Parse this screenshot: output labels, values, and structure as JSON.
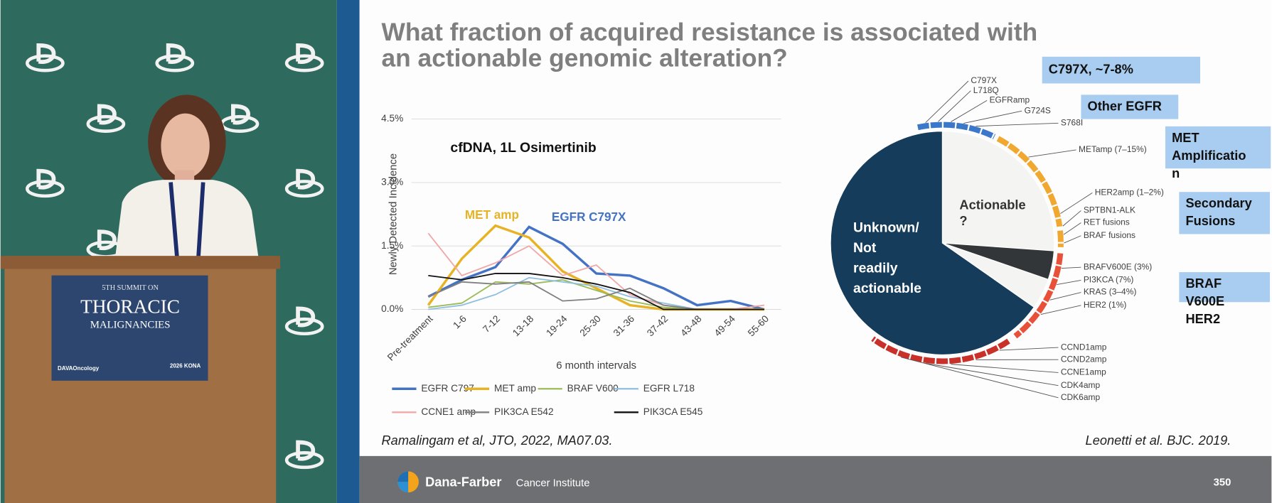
{
  "podium": {
    "line1": "5TH SUMMIT ON",
    "line2": "THORACIC",
    "line3": "MALIGNANCIES",
    "logo": "DAVAOncology",
    "event": "2026 KONA"
  },
  "slide": {
    "title": [
      "What fraction of acquired resistance is associated with",
      "an actionable genomic alteration?"
    ],
    "left_citation": "Ramalingam et al, JTO, 2022, MA07.03.",
    "right_citation": "Leonetti et al. BJC. 2019.",
    "footer": {
      "brand": "Dana-Farber",
      "sub": "Cancer Institute",
      "page": "350"
    }
  },
  "chart_data": {
    "type": "line",
    "annotations": [
      "cfDNA, 1L Osimertinib",
      "MET amp",
      "EGFR C797X"
    ],
    "x_label": "6 month intervals",
    "y_label": "Newly Detected Incidence",
    "categories": [
      "Pre-treatment",
      "1-6",
      "7-12",
      "13-18",
      "19-24",
      "25-30",
      "31-36",
      "37-42",
      "43-48",
      "49-54",
      "55-60"
    ],
    "ylim": [
      0,
      4.5
    ],
    "yticks": [
      {
        "value": 0,
        "label": "0.0%"
      },
      {
        "value": 1.5,
        "label": "1.5%"
      },
      {
        "value": 3,
        "label": "3.0%"
      },
      {
        "value": 4.5,
        "label": "4.5%"
      }
    ],
    "grid": true,
    "legend": "bottom",
    "series": [
      {
        "name": "EGFR C797",
        "color": "#4472c4",
        "values": [
          0.3,
          0.7,
          1.0,
          1.95,
          1.55,
          0.85,
          0.8,
          0.5,
          0.1,
          0.2,
          0.0
        ]
      },
      {
        "name": "MET amp",
        "color": "#e7b324",
        "values": [
          0.1,
          1.2,
          1.98,
          1.7,
          0.9,
          0.5,
          0.1,
          0.0,
          0.0,
          0.0,
          0.0
        ]
      },
      {
        "name": "BRAF V600",
        "color": "#9bbb59",
        "values": [
          0.05,
          0.15,
          0.65,
          0.6,
          0.7,
          0.45,
          0.2,
          0.05,
          0.0,
          0.0,
          0.0
        ]
      },
      {
        "name": "EGFR L718",
        "color": "#8fbfe0",
        "values": [
          0.0,
          0.1,
          0.35,
          0.75,
          0.65,
          0.55,
          0.3,
          0.15,
          0.0,
          0.0,
          0.0
        ]
      },
      {
        "name": "CCNE1 amp",
        "color": "#f0a8a8",
        "values": [
          1.8,
          0.8,
          1.1,
          1.5,
          0.8,
          1.05,
          0.35,
          0.1,
          0.0,
          0.0,
          0.1
        ]
      },
      {
        "name": "PIK3CA E542",
        "color": "#808080",
        "values": [
          0.3,
          0.65,
          0.6,
          0.65,
          0.2,
          0.25,
          0.5,
          0.1,
          0.0,
          0.0,
          0.0
        ]
      },
      {
        "name": "PIK3CA E545",
        "color": "#111111",
        "values": [
          0.8,
          0.7,
          0.85,
          0.85,
          0.75,
          0.6,
          0.4,
          0.0,
          0.0,
          0.0,
          0.0
        ]
      }
    ]
  },
  "pie_diagram": {
    "actionable": [
      "Actionable",
      "?"
    ],
    "unknown": [
      "Unknown/",
      "Not",
      "readily",
      "actionable"
    ],
    "segment_labels": [
      "C797X",
      "L718Q",
      "EGFRamp",
      "G724S",
      "S768I",
      "METamp (7–15%)",
      "HER2amp (1–2%)",
      "SPTBN1-ALK",
      "RET fusions",
      "BRAF fusions",
      "BRAFV600E (3%)",
      "PI3KCA (7%)",
      "KRAS (3–4%)",
      "HER2 (1%)",
      "CCND1amp",
      "CCND2amp",
      "CCNE1amp",
      "CDK4amp",
      "CDK6amp"
    ],
    "boxes": [
      [
        "C797X, ~7-8%"
      ],
      [
        "Other EGFR"
      ],
      [
        "MET",
        "Amplificatio",
        "n"
      ],
      [
        "Secondary",
        "Fusions"
      ],
      [
        "BRAF",
        "V600E",
        "HER2"
      ]
    ]
  }
}
